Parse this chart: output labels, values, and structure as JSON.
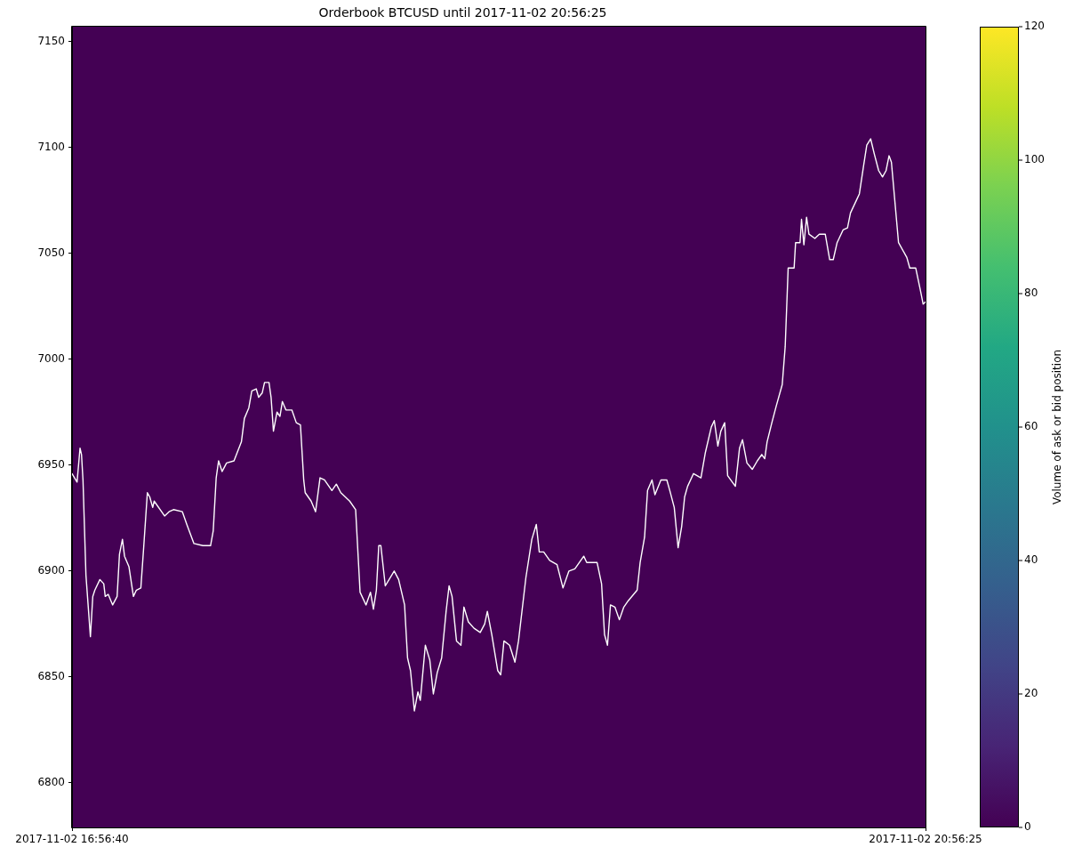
{
  "chart_data": {
    "type": "line",
    "title": "Orderbook BTCUSD until 2017-11-02 20:56:25",
    "x": [
      "2017-11-02T16:56:40",
      "2017-11-02T16:58:05",
      "2017-11-02T16:58:55",
      "2017-11-02T16:59:20",
      "2017-11-02T16:59:45",
      "2017-11-02T17:00:35",
      "2017-11-02T17:01:50",
      "2017-11-02T17:02:30",
      "2017-11-02T17:03:05",
      "2017-11-02T17:04:30",
      "2017-11-02T17:05:35",
      "2017-11-02T17:06:00",
      "2017-11-02T17:06:50",
      "2017-11-02T17:08:05",
      "2017-11-02T17:09:20",
      "2017-11-02T17:10:00",
      "2017-11-02T17:10:50",
      "2017-11-02T17:11:25",
      "2017-11-02T17:12:40",
      "2017-11-02T17:13:55",
      "2017-11-02T17:14:45",
      "2017-11-02T17:16:00",
      "2017-11-02T17:16:50",
      "2017-11-02T17:17:50",
      "2017-11-02T17:18:30",
      "2017-11-02T17:19:20",
      "2017-11-02T17:19:45",
      "2017-11-02T17:22:40",
      "2017-11-02T17:23:55",
      "2017-11-02T17:25:10",
      "2017-11-02T17:27:40",
      "2017-11-02T17:28:55",
      "2017-11-02T17:30:55",
      "2017-11-02T17:33:25",
      "2017-11-02T17:35:35",
      "2017-11-02T17:36:20",
      "2017-11-02T17:37:10",
      "2017-11-02T17:37:50",
      "2017-11-02T17:38:50",
      "2017-11-02T17:40:05",
      "2017-11-02T17:42:10",
      "2017-11-02T17:43:05",
      "2017-11-02T17:44:15",
      "2017-11-02T17:45:05",
      "2017-11-02T17:46:20",
      "2017-11-02T17:47:10",
      "2017-11-02T17:48:25",
      "2017-11-02T17:49:05",
      "2017-11-02T17:50:05",
      "2017-11-02T17:50:45",
      "2017-11-02T17:52:00",
      "2017-11-02T17:52:35",
      "2017-11-02T17:53:15",
      "2017-11-02T17:54:15",
      "2017-11-02T17:55:05",
      "2017-11-02T17:55:45",
      "2017-11-02T17:56:45",
      "2017-11-02T17:58:25",
      "2017-11-02T17:59:40",
      "2017-11-02T18:00:50",
      "2017-11-02T18:01:45",
      "2017-11-02T18:02:10",
      "2017-11-02T18:03:50",
      "2017-11-02T18:05:05",
      "2017-11-02T18:06:20",
      "2017-11-02T18:07:35",
      "2017-11-02T18:09:40",
      "2017-11-02T18:10:55",
      "2017-11-02T18:12:10",
      "2017-11-02T18:14:40",
      "2017-11-02T18:16:20",
      "2017-11-02T18:17:35",
      "2017-11-02T18:19:15",
      "2017-11-02T18:20:30",
      "2017-11-02T18:21:20",
      "2017-11-02T18:22:10",
      "2017-11-02T18:22:50",
      "2017-11-02T18:23:25",
      "2017-11-02T18:24:40",
      "2017-11-02T18:27:10",
      "2017-11-02T18:28:25",
      "2017-11-02T18:30:05",
      "2017-11-02T18:30:55",
      "2017-11-02T18:31:45",
      "2017-11-02T18:32:50",
      "2017-11-02T18:33:50",
      "2017-11-02T18:34:30",
      "2017-11-02T18:35:55",
      "2017-11-02T18:37:10",
      "2017-11-02T18:38:10",
      "2017-11-02T18:39:15",
      "2017-11-02T18:40:30",
      "2017-11-02T18:41:45",
      "2017-11-02T18:42:35",
      "2017-11-02T18:43:25",
      "2017-11-02T18:44:40",
      "2017-11-02T18:45:55",
      "2017-11-02T18:46:45",
      "2017-11-02T18:48:00",
      "2017-11-02T18:49:35",
      "2017-11-02T18:51:20",
      "2017-11-02T18:52:35",
      "2017-11-02T18:53:20",
      "2017-11-02T18:54:35",
      "2017-11-02T18:56:15",
      "2017-11-02T18:57:05",
      "2017-11-02T18:58:00",
      "2017-11-02T18:59:35",
      "2017-11-02T19:01:05",
      "2017-11-02T19:02:05",
      "2017-11-02T19:04:10",
      "2017-11-02T19:05:50",
      "2017-11-02T19:07:05",
      "2017-11-02T19:07:55",
      "2017-11-02T19:09:10",
      "2017-11-02T19:10:50",
      "2017-11-02T19:12:55",
      "2017-11-02T19:14:35",
      "2017-11-02T19:16:15",
      "2017-11-02T19:17:55",
      "2017-11-02T19:20:25",
      "2017-11-02T19:21:15",
      "2017-11-02T19:24:10",
      "2017-11-02T19:25:25",
      "2017-11-02T19:26:15",
      "2017-11-02T19:27:05",
      "2017-11-02T19:27:55",
      "2017-11-02T19:29:10",
      "2017-11-02T19:30:25",
      "2017-11-02T19:31:40",
      "2017-11-02T19:32:55",
      "2017-11-02T19:35:25",
      "2017-11-02T19:36:15",
      "2017-11-02T19:37:30",
      "2017-11-02T19:38:20",
      "2017-11-02T19:39:35",
      "2017-11-02T19:40:25",
      "2017-11-02T19:42:05",
      "2017-11-02T19:43:45",
      "2017-11-02T19:44:35",
      "2017-11-02T19:45:50",
      "2017-11-02T19:46:55",
      "2017-11-02T19:47:55",
      "2017-11-02T19:48:45",
      "2017-11-02T19:49:35",
      "2017-11-02T19:51:15",
      "2017-11-02T19:53:20",
      "2017-11-02T19:54:35",
      "2017-11-02T19:56:15",
      "2017-11-02T19:57:05",
      "2017-11-02T19:58:05",
      "2017-11-02T19:58:55",
      "2017-11-02T20:00:00",
      "2017-11-02T20:00:50",
      "2017-11-02T20:03:00",
      "2017-11-02T20:04:10",
      "2017-11-02T20:05:00",
      "2017-11-02T20:06:15",
      "2017-11-02T20:07:45",
      "2017-11-02T20:09:10",
      "2017-11-02T20:10:25",
      "2017-11-02T20:11:15",
      "2017-11-02T20:11:55",
      "2017-11-02T20:13:15",
      "2017-11-02T20:14:30",
      "2017-11-02T20:16:10",
      "2017-11-02T20:17:00",
      "2017-11-02T20:17:50",
      "2017-11-02T20:19:30",
      "2017-11-02T20:19:55",
      "2017-11-02T20:21:10",
      "2017-11-02T20:21:35",
      "2017-11-02T20:22:15",
      "2017-11-02T20:23:00",
      "2017-11-02T20:23:40",
      "2017-11-02T20:25:20",
      "2017-11-02T20:26:35",
      "2017-11-02T20:28:15",
      "2017-11-02T20:29:30",
      "2017-11-02T20:30:30",
      "2017-11-02T20:31:35",
      "2017-11-02T20:33:15",
      "2017-11-02T20:34:30",
      "2017-11-02T20:35:20",
      "2017-11-02T20:37:00",
      "2017-11-02T20:37:50",
      "2017-11-02T20:39:05",
      "2017-11-02T20:39:55",
      "2017-11-02T20:41:00",
      "2017-11-02T20:42:00",
      "2017-11-02T20:43:15",
      "2017-11-02T20:44:20",
      "2017-11-02T20:45:20",
      "2017-11-02T20:46:10",
      "2017-11-02T20:46:50",
      "2017-11-02T20:48:50",
      "2017-11-02T20:51:10",
      "2017-11-02T20:52:00",
      "2017-11-02T20:53:40",
      "2017-11-02T20:54:55",
      "2017-11-02T20:55:45",
      "2017-11-02T20:56:25"
    ],
    "series": [
      {
        "color": "#ffffff",
        "values": [
          6946,
          6942,
          6958,
          6955,
          6943,
          6898,
          6869,
          6888,
          6891,
          6896,
          6894,
          6888,
          6889,
          6884,
          6888,
          6908,
          6915,
          6907,
          6902,
          6888,
          6891,
          6892,
          6912,
          6937,
          6935,
          6930,
          6933,
          6926,
          6928,
          6929,
          6928,
          6922,
          6913,
          6912,
          6912,
          6919,
          6944,
          6952,
          6947,
          6951,
          6952,
          6956,
          6961,
          6972,
          6977,
          6985,
          6986,
          6982,
          6984,
          6989,
          6989,
          6982,
          6966,
          6975,
          6973,
          6980,
          6976,
          6976,
          6970,
          6969,
          6943,
          6937,
          6933,
          6928,
          6944,
          6943,
          6938,
          6941,
          6937,
          6933,
          6929,
          6890,
          6884,
          6890,
          6882,
          6891,
          6912,
          6912,
          6893,
          6900,
          6896,
          6884,
          6859,
          6853,
          6834,
          6843,
          6839,
          6865,
          6858,
          6842,
          6852,
          6859,
          6881,
          6893,
          6888,
          6867,
          6865,
          6883,
          6876,
          6873,
          6871,
          6875,
          6881,
          6870,
          6853,
          6851,
          6867,
          6865,
          6857,
          6867,
          6897,
          6915,
          6922,
          6909,
          6909,
          6905,
          6903,
          6892,
          6900,
          6901,
          6907,
          6904,
          6904,
          6894,
          6870,
          6865,
          6884,
          6883,
          6877,
          6883,
          6886,
          6891,
          6904,
          6916,
          6938,
          6943,
          6936,
          6943,
          6943,
          6938,
          6930,
          6911,
          6921,
          6935,
          6940,
          6946,
          6944,
          6956,
          6968,
          6971,
          6959,
          6966,
          6970,
          6945,
          6940,
          6958,
          6962,
          6951,
          6948,
          6952,
          6955,
          6953,
          6961,
          6970,
          6978,
          6988,
          7006,
          7043,
          7043,
          7055,
          7055,
          7066,
          7054,
          7067,
          7059,
          7057,
          7059,
          7059,
          7047,
          7047,
          7055,
          7061,
          7062,
          7069,
          7075,
          7078,
          7092,
          7101,
          7104,
          7097,
          7089,
          7086,
          7089,
          7096,
          7093,
          7055,
          7048,
          7043,
          7043,
          7033,
          7026,
          7027
        ]
      }
    ],
    "xlim": [
      "2017-11-02T16:56:40",
      "2017-11-02T20:56:25"
    ],
    "xticks": [
      {
        "value": "2017-11-02T16:56:40",
        "label": "2017-11-02 16:56:40"
      },
      {
        "value": "2017-11-02T20:56:25",
        "label": "2017-11-02 20:56:25"
      }
    ],
    "ylim": [
      6779,
      7157
    ],
    "yticks": [
      6800,
      6850,
      6900,
      6950,
      7000,
      7050,
      7100,
      7150
    ],
    "clim": [
      0,
      120
    ],
    "cticks": [
      0,
      20,
      40,
      60,
      80,
      100,
      120
    ],
    "clabel": "Volume of ask or bid position"
  }
}
